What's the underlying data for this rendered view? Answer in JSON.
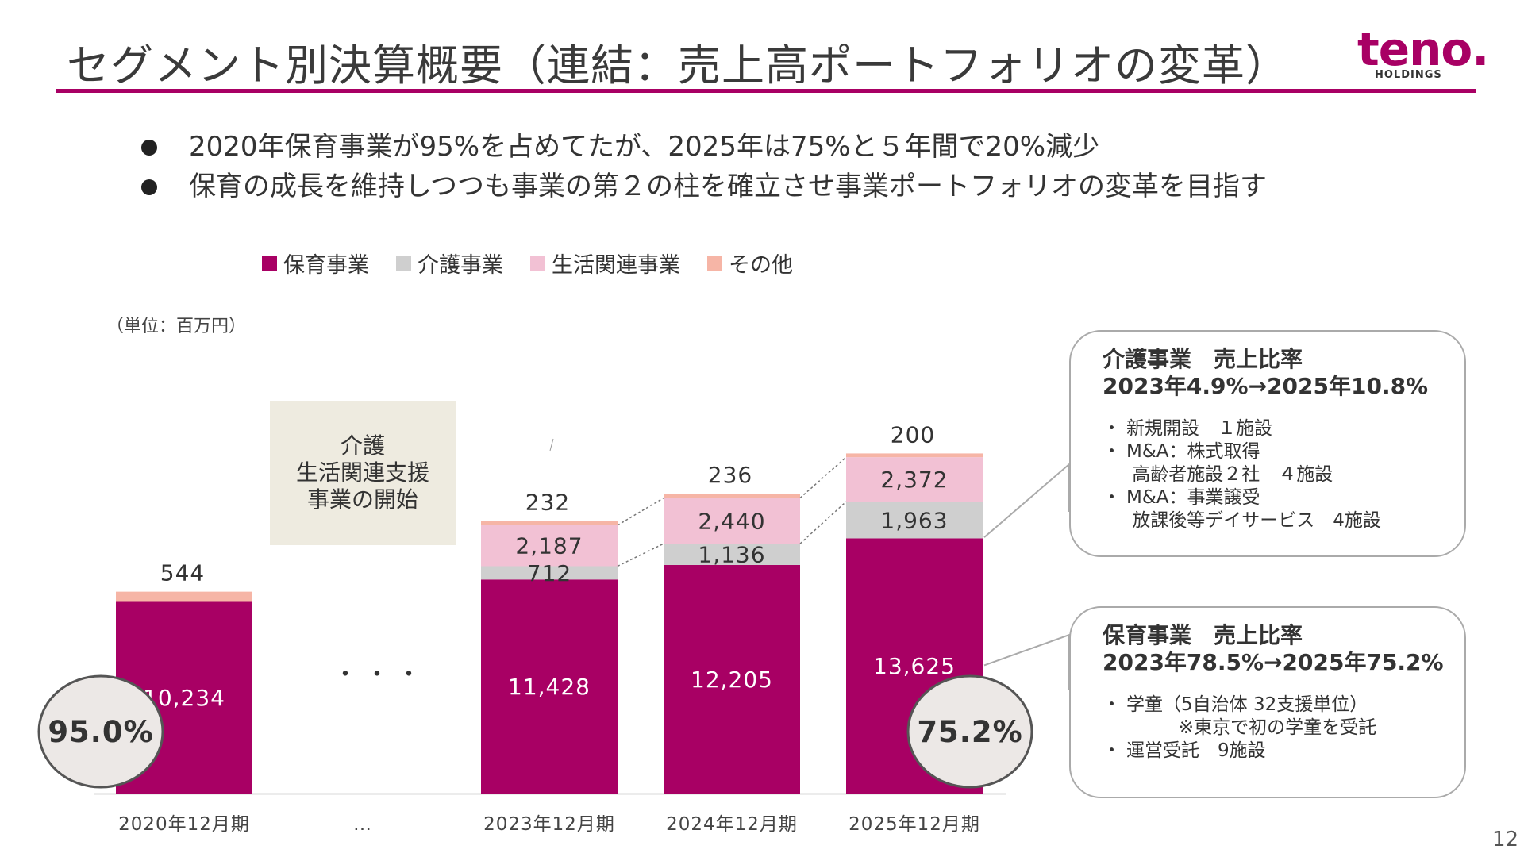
{
  "header": {
    "title": "セグメント別決算概要（連結：売上高ポートフォリオの変革）",
    "logo_word": "teno.",
    "logo_sub": "HOLDINGS"
  },
  "bullets": [
    "2020年保育事業が95%を占めてたが、2025年は75%と５年間で20%減少",
    "保育の成長を維持しつつも事業の第２の柱を確立させ事業ポートフォリオの変革を目指す"
  ],
  "unit_label": "（単位：百万円）",
  "note_box": [
    "介護",
    "生活関連支援",
    "事業の開始"
  ],
  "gap_dots": "・・・",
  "colors": {
    "accent": "#a80064",
    "hoiku": "#a80064",
    "kaigo": "#cfcfcf",
    "seikatsu": "#f2c1d4",
    "sonota": "#f6b5a6"
  },
  "chart_data": {
    "type": "bar",
    "stacked": true,
    "categories": [
      "2020年12月期",
      "…",
      "2023年12月期",
      "2024年12月期",
      "2025年12月期"
    ],
    "series": [
      {
        "name": "保育事業",
        "values": [
          10234,
          null,
          11428,
          12205,
          13625
        ]
      },
      {
        "name": "介護事業",
        "values": [
          null,
          null,
          712,
          1136,
          1963
        ]
      },
      {
        "name": "生活関連事業",
        "values": [
          null,
          null,
          2187,
          2440,
          2372
        ]
      },
      {
        "name": "その他",
        "values": [
          544,
          null,
          232,
          236,
          200
        ]
      }
    ],
    "title": "",
    "xlabel": "",
    "ylabel": "",
    "legend_position": "top",
    "grid": false,
    "share_badges": [
      {
        "category": "2020年12月期",
        "label": "95.0%"
      },
      {
        "category": "2025年12月期",
        "label": "75.2%"
      }
    ]
  },
  "callouts": {
    "kaigo": {
      "head": [
        "介護事業　売上比率",
        "2023年4.9%→2025年10.8%"
      ],
      "items": [
        {
          "bullet": "・",
          "text": "新規開設　１施設"
        },
        {
          "bullet": "・",
          "text": "M&A：株式取得"
        },
        {
          "bullet": "",
          "text": " 高齢者施設２社　４施設"
        },
        {
          "bullet": "・",
          "text": "M&A：事業譲受"
        },
        {
          "bullet": "",
          "text": " 放課後等デイサービス　4施設"
        }
      ]
    },
    "hoiku": {
      "head": [
        "保育事業　売上比率",
        "2023年78.5%→2025年75.2%"
      ],
      "items": [
        {
          "bullet": "・",
          "text": "学童（5自治体 32支援単位）"
        },
        {
          "bullet": "",
          "text": "         ※東京で初の学童を受託"
        },
        {
          "bullet": "・",
          "text": "運営受託　9施設"
        }
      ]
    }
  },
  "page_number": "12"
}
